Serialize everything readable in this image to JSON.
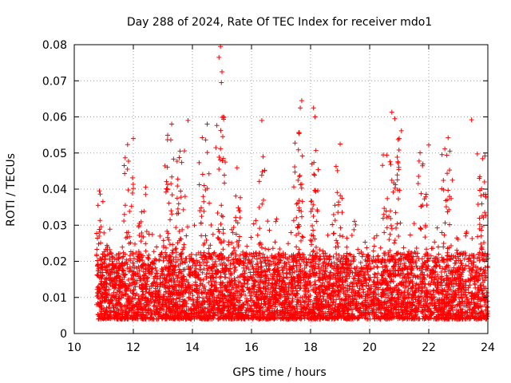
{
  "chart_data": {
    "type": "scatter",
    "title": "Day 288 of 2024, Rate Of TEC Index for receiver mdo1",
    "xlabel": "GPS time / hours",
    "ylabel": "ROTI / TECUs",
    "xlim": [
      10,
      24
    ],
    "ylim": [
      0,
      0.08
    ],
    "x_ticks": [
      10,
      12,
      14,
      16,
      18,
      20,
      22,
      24
    ],
    "y_ticks": [
      0,
      0.01,
      0.02,
      0.03,
      0.04,
      0.05,
      0.06,
      0.07,
      0.08
    ],
    "y_tick_labels": [
      "0",
      "0.01",
      "0.02",
      "0.03",
      "0.04",
      "0.05",
      "0.06",
      "0.07",
      "0.08"
    ],
    "grid": true,
    "marker": "+",
    "color": "#ff0000",
    "x_range_of_data": [
      10.75,
      24.0
    ],
    "typical_value_band": [
      0.004,
      0.02
    ],
    "notable_points": [
      {
        "x": 10.85,
        "y": 0.0395
      },
      {
        "x": 12.0,
        "y": 0.054
      },
      {
        "x": 13.3,
        "y": 0.058
      },
      {
        "x": 13.85,
        "y": 0.059
      },
      {
        "x": 14.5,
        "y": 0.058
      },
      {
        "x": 14.95,
        "y": 0.0795
      },
      {
        "x": 14.9,
        "y": 0.0765
      },
      {
        "x": 15.0,
        "y": 0.0725
      },
      {
        "x": 14.98,
        "y": 0.0695
      },
      {
        "x": 15.05,
        "y": 0.06
      },
      {
        "x": 16.35,
        "y": 0.059
      },
      {
        "x": 17.7,
        "y": 0.0645
      },
      {
        "x": 17.65,
        "y": 0.0625
      },
      {
        "x": 18.1,
        "y": 0.0625
      },
      {
        "x": 18.15,
        "y": 0.06
      },
      {
        "x": 19.0,
        "y": 0.0525
      },
      {
        "x": 20.75,
        "y": 0.0613
      },
      {
        "x": 20.85,
        "y": 0.0595
      },
      {
        "x": 21.0,
        "y": 0.054
      },
      {
        "x": 22.0,
        "y": 0.0522
      },
      {
        "x": 22.8,
        "y": 0.0425
      },
      {
        "x": 23.45,
        "y": 0.0592
      },
      {
        "x": 23.9,
        "y": 0.0492
      }
    ],
    "clusters": [
      {
        "x": 10.9,
        "y_center": 0.03,
        "count": 8
      },
      {
        "x": 11.85,
        "y_center": 0.042,
        "count": 12
      },
      {
        "x": 12.3,
        "y_center": 0.035,
        "count": 10
      },
      {
        "x": 13.2,
        "y_center": 0.045,
        "count": 12
      },
      {
        "x": 13.6,
        "y_center": 0.04,
        "count": 12
      },
      {
        "x": 14.4,
        "y_center": 0.045,
        "count": 10
      },
      {
        "x": 14.95,
        "y_center": 0.05,
        "count": 14
      },
      {
        "x": 15.5,
        "y_center": 0.035,
        "count": 10
      },
      {
        "x": 16.3,
        "y_center": 0.04,
        "count": 8
      },
      {
        "x": 17.6,
        "y_center": 0.045,
        "count": 16
      },
      {
        "x": 18.1,
        "y_center": 0.04,
        "count": 14
      },
      {
        "x": 18.9,
        "y_center": 0.038,
        "count": 8
      },
      {
        "x": 20.6,
        "y_center": 0.04,
        "count": 12
      },
      {
        "x": 20.9,
        "y_center": 0.047,
        "count": 12
      },
      {
        "x": 21.8,
        "y_center": 0.04,
        "count": 10
      },
      {
        "x": 22.6,
        "y_center": 0.045,
        "count": 10
      },
      {
        "x": 23.8,
        "y_center": 0.04,
        "count": 14
      }
    ]
  }
}
